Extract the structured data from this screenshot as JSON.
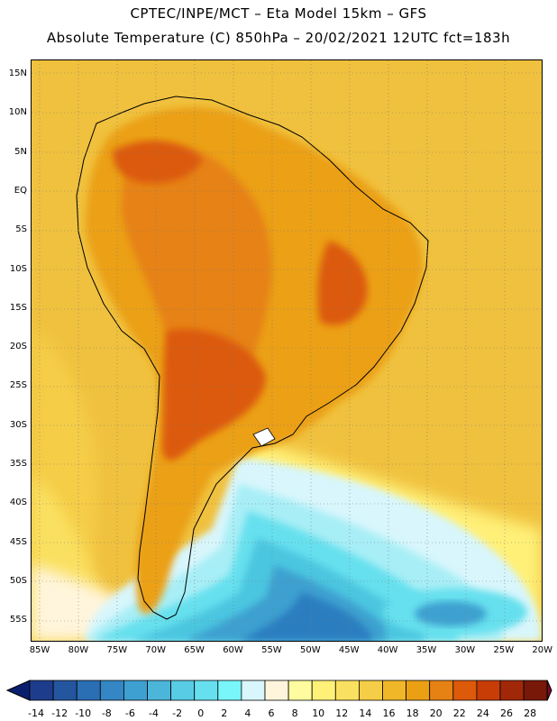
{
  "header": {
    "line1": "CPTEC/INPE/MCT –  Eta Model 15km – GFS",
    "line2": "Absolute Temperature (C) 850hPa – 20/02/2021 12UTC fct=183h"
  },
  "axes": {
    "lat_labels": [
      "15N",
      "10N",
      "5N",
      "EQ",
      "5S",
      "10S",
      "15S",
      "20S",
      "25S",
      "30S",
      "35S",
      "40S",
      "45S",
      "50S",
      "55S"
    ],
    "lon_labels": [
      "85W",
      "80W",
      "75W",
      "70W",
      "65W",
      "60W",
      "55W",
      "50W",
      "45W",
      "40W",
      "35W",
      "30W",
      "25W",
      "20W"
    ]
  },
  "colorbar": {
    "labels": [
      "-14",
      "-12",
      "-10",
      "-8",
      "-6",
      "-4",
      "-2",
      "0",
      "2",
      "4",
      "6",
      "8",
      "10",
      "12",
      "14",
      "16",
      "18",
      "20",
      "22",
      "24",
      "26",
      "28"
    ],
    "colors": [
      "#1e3c8c",
      "#2456a0",
      "#2a6eb4",
      "#3486c4",
      "#3ea0d0",
      "#4cb6da",
      "#58cce4",
      "#66e0ee",
      "#78f6fa",
      "#d8f6fc",
      "#fff5dc",
      "#fffca0",
      "#fff078",
      "#fae060",
      "#f5cd46",
      "#f0b828",
      "#eba014",
      "#e68214",
      "#dc5a0a",
      "#c83c06",
      "#a02808",
      "#781808"
    ],
    "left_arrow": "#0a1e6e",
    "right_arrow": "#780a2a"
  },
  "map": {
    "background": "#f0c13e",
    "land_color": "#eba014",
    "warm_core": "#dc6a10",
    "hot_core": "#c84a08",
    "cold_colors": [
      "#d8f6fc",
      "#a8eef6",
      "#66e0ee",
      "#4cc6e0",
      "#3ea0d0",
      "#2a7ec0",
      "#2456a0"
    ]
  }
}
